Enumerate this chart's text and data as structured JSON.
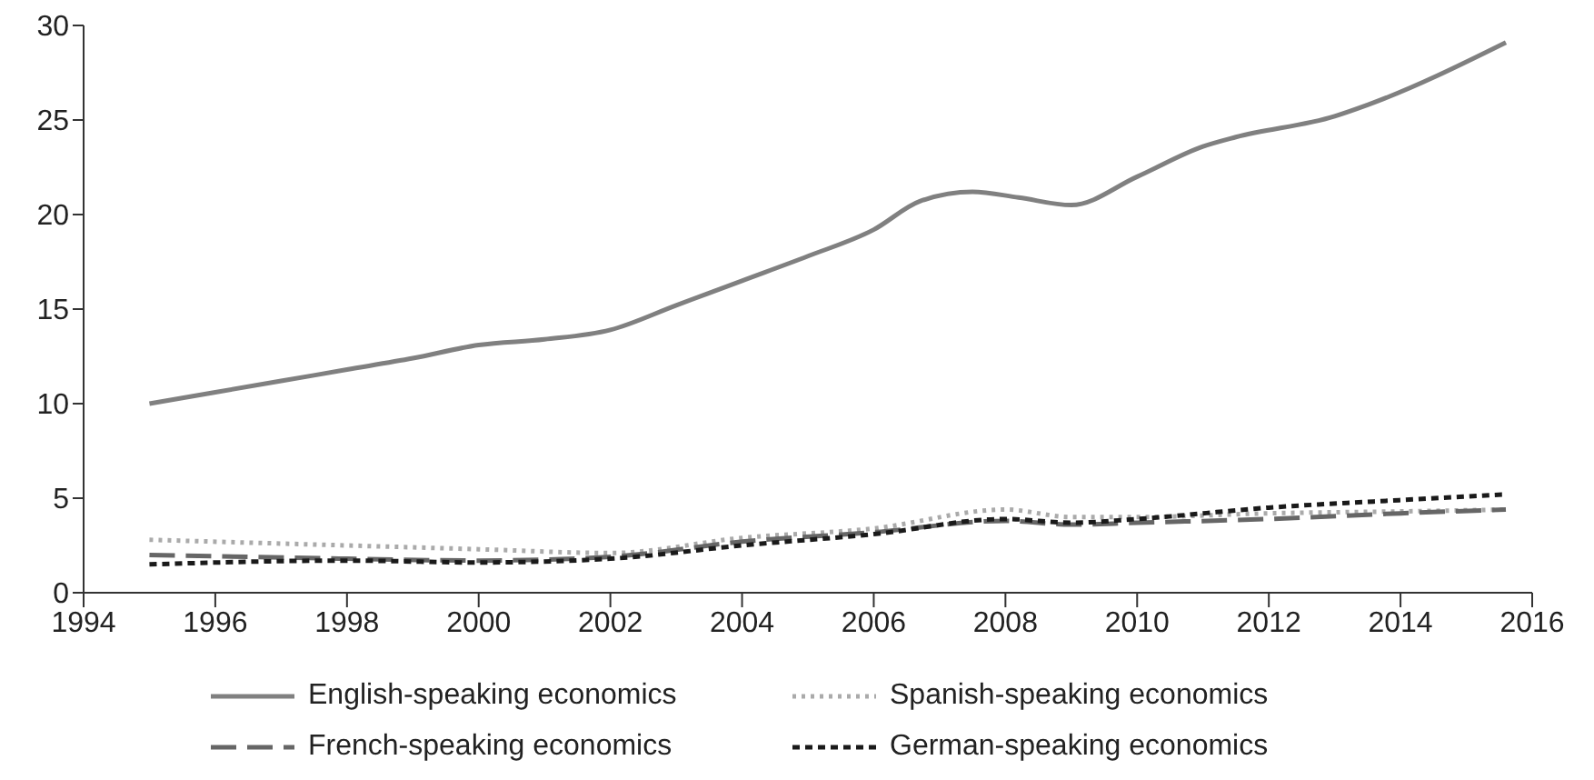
{
  "chart_data": {
    "type": "line",
    "xlim": [
      1994,
      2016
    ],
    "xticks": [
      1994,
      1996,
      1998,
      2000,
      2002,
      2004,
      2006,
      2008,
      2010,
      2012,
      2014,
      2016
    ],
    "ylim": [
      0,
      30
    ],
    "yticks": [
      0,
      5,
      10,
      15,
      20,
      25,
      30
    ],
    "grid": false,
    "legend": "bottom",
    "marker": "none",
    "series": [
      {
        "name": "English-speaking economics",
        "color": "#808080",
        "line_style": "solid",
        "x": [
          1995,
          1996,
          1997,
          1998,
          1999,
          2000,
          2001,
          2002,
          2003,
          2004,
          2005,
          2006,
          2006.7,
          2007.5,
          2008.2,
          2009,
          2010,
          2011,
          2011.5,
          2013,
          2013.5,
          2015.6
        ],
        "values": [
          10,
          10.6,
          11.2,
          11.8,
          12.4,
          13.1,
          13.4,
          13.9,
          15.2,
          16.5,
          17.8,
          19.2,
          20.7,
          21.2,
          20.9,
          20.5,
          22,
          23.6,
          24.1,
          25.2,
          25.8,
          29.1
        ]
      },
      {
        "name": "Spanish-speaking economics",
        "color": "#aaaaaa",
        "line_style": "dotted",
        "x": [
          1995,
          1998,
          2000,
          2002,
          2004,
          2006,
          2008,
          2009,
          2010,
          2012,
          2014,
          2015.6
        ],
        "values": [
          2.8,
          2.5,
          2.3,
          2.1,
          2.9,
          3.4,
          4.4,
          4,
          4,
          4.2,
          4.3,
          4.4
        ]
      },
      {
        "name": "French-speaking economics",
        "color": "#666666",
        "line_style": "dashed",
        "x": [
          1995,
          1998,
          2000,
          2002,
          2004,
          2006,
          2008,
          2009,
          2010,
          2012,
          2014,
          2015.6
        ],
        "values": [
          2,
          1.8,
          1.7,
          1.9,
          2.7,
          3.2,
          3.8,
          3.6,
          3.7,
          3.9,
          4.2,
          4.4
        ]
      },
      {
        "name": "German-speaking economics",
        "color": "#1a1a1a",
        "line_style": "dashed",
        "x": [
          1995,
          1998,
          2000,
          2002,
          2004,
          2006,
          2008,
          2009,
          2010,
          2012,
          2014,
          2015.6
        ],
        "values": [
          1.5,
          1.7,
          1.6,
          1.8,
          2.5,
          3.1,
          3.9,
          3.7,
          3.9,
          4.5,
          4.9,
          5.2
        ]
      }
    ]
  }
}
